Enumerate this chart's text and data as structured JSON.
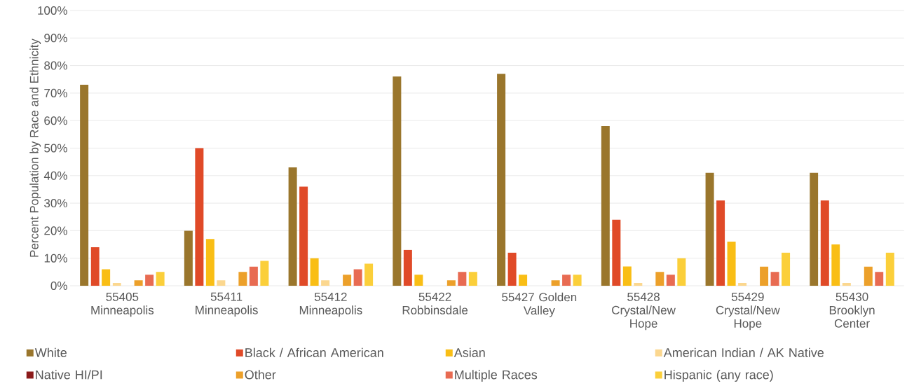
{
  "chart_data": {
    "type": "bar",
    "ylabel": "Percent Population by Race and Ethnicity",
    "categories": [
      "55405 Minneapolis",
      "55411 Minneapolis",
      "55412 Minneapolis",
      "55422 Robbinsdale",
      "55427 Golden Valley",
      "55428 Crystal/New Hope",
      "55429 Crystal/New Hope",
      "55430 Brooklyn Center"
    ],
    "series": [
      {
        "name": "White",
        "color": "#9a762c",
        "values": [
          73,
          20,
          43,
          76,
          77,
          58,
          41,
          41
        ]
      },
      {
        "name": "Black / African American",
        "color": "#e04a28",
        "values": [
          14,
          50,
          36,
          13,
          12,
          24,
          31,
          31
        ]
      },
      {
        "name": "Asian",
        "color": "#f9be15",
        "values": [
          6,
          17,
          10,
          4,
          4,
          7,
          16,
          15
        ]
      },
      {
        "name": "American Indian / AK Native",
        "color": "#fbd78f",
        "values": [
          1,
          2,
          2,
          0,
          0,
          1,
          1,
          1
        ]
      },
      {
        "name": "Native HI/PI",
        "color": "#8b1a1a",
        "values": [
          0,
          0,
          0,
          0,
          0,
          0,
          0,
          0
        ]
      },
      {
        "name": "Other",
        "color": "#eca02a",
        "values": [
          2,
          5,
          4,
          2,
          2,
          5,
          7,
          7
        ]
      },
      {
        "name": "Multiple Races",
        "color": "#e86b52",
        "values": [
          4,
          7,
          6,
          5,
          4,
          4,
          5,
          5
        ]
      },
      {
        "name": "Hispanic (any race)",
        "color": "#fbcf3a",
        "values": [
          5,
          9,
          8,
          5,
          4,
          10,
          12,
          12
        ]
      }
    ],
    "ylim": [
      0,
      100
    ],
    "yticks": [
      {
        "value": 0,
        "label": "0%"
      },
      {
        "value": 10,
        "label": "10%"
      },
      {
        "value": 20,
        "label": "20%"
      },
      {
        "value": 30,
        "label": "30%"
      },
      {
        "value": 40,
        "label": "40%"
      },
      {
        "value": 50,
        "label": "50%"
      },
      {
        "value": 60,
        "label": "60%"
      },
      {
        "value": 70,
        "label": "70%"
      },
      {
        "value": 80,
        "label": "80%"
      },
      {
        "value": 90,
        "label": "90%"
      },
      {
        "value": 100,
        "label": "100%"
      }
    ],
    "grid": "y",
    "legend": "bottom"
  }
}
